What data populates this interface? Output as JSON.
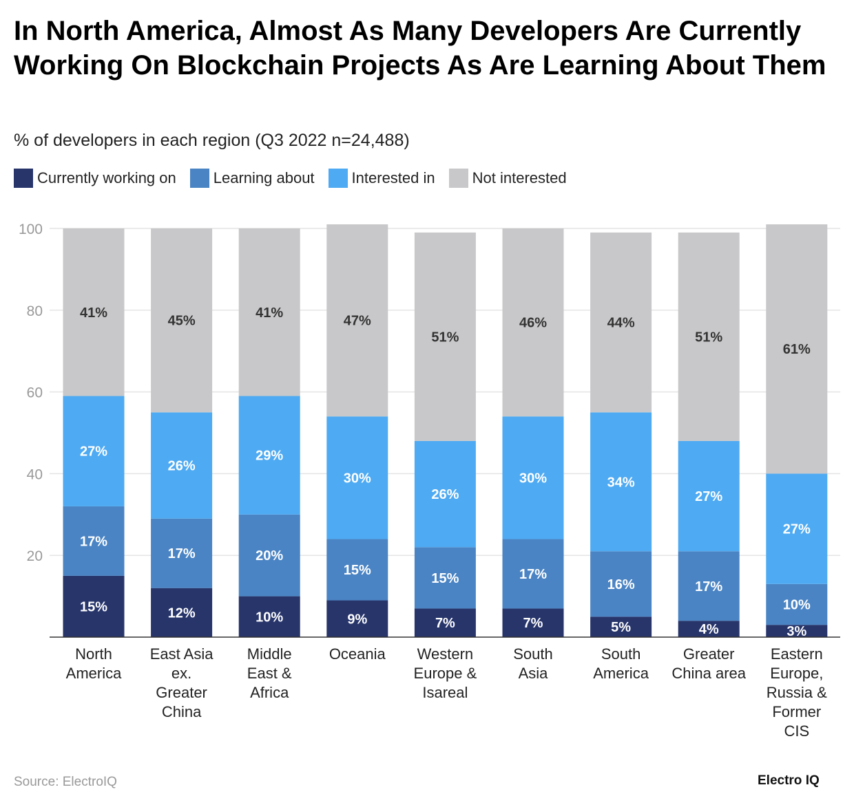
{
  "chart_data": {
    "type": "bar",
    "stacked": true,
    "title": "In North America, Almost As Many Developers Are Currently Working On Blockchain Projects As Are Learning About Them",
    "subtitle": "% of developers in each region (Q3 2022 n=24,488)",
    "categories": [
      [
        "North",
        "America"
      ],
      [
        "East Asia",
        "ex.",
        "Greater",
        "China"
      ],
      [
        "Middle",
        "East &",
        "Africa"
      ],
      [
        "Oceania"
      ],
      [
        "Western",
        "Europe &",
        "Isareal"
      ],
      [
        "South",
        "Asia"
      ],
      [
        "South",
        "America"
      ],
      [
        "Greater",
        "China area"
      ],
      [
        "Eastern",
        "Europe,",
        "Russia &",
        "Former",
        "CIS"
      ]
    ],
    "series": [
      {
        "name": "Currently working on",
        "color": "#27356b",
        "values": [
          15,
          12,
          10,
          9,
          7,
          7,
          5,
          4,
          3
        ]
      },
      {
        "name": "Learning about",
        "color": "#4a84c4",
        "values": [
          17,
          17,
          20,
          15,
          15,
          17,
          16,
          17,
          10
        ]
      },
      {
        "name": "Interested in",
        "color": "#4eaaf2",
        "values": [
          27,
          26,
          29,
          30,
          26,
          30,
          34,
          27,
          27
        ]
      },
      {
        "name": "Not interested",
        "color": "#c8c8ca",
        "values": [
          41,
          45,
          41,
          47,
          51,
          46,
          44,
          51,
          61
        ]
      }
    ],
    "ylim": [
      0,
      100
    ],
    "yticks": [
      20,
      40,
      60,
      80,
      100
    ],
    "grid": true,
    "legend_position": "top-left",
    "value_suffix": "%"
  },
  "source": "Source: ElectroIQ",
  "brand": "Electro IQ"
}
